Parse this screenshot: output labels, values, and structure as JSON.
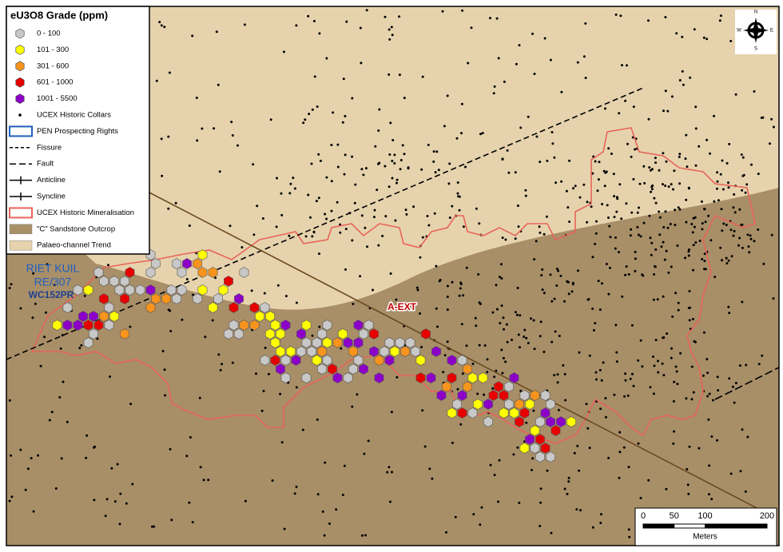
{
  "legend": {
    "title": "eU3O8 Grade (ppm)",
    "items": [
      {
        "label": "0 - 100",
        "symbol": "hex",
        "color": "#c8c8c8"
      },
      {
        "label": "101 - 300",
        "symbol": "hex",
        "color": "#ffff00"
      },
      {
        "label": "301 - 600",
        "symbol": "hex",
        "color": "#f7941d"
      },
      {
        "label": "601 - 1000",
        "symbol": "hex",
        "color": "#e60000"
      },
      {
        "label": "1001 - 5500",
        "symbol": "hex",
        "color": "#8c00c8"
      },
      {
        "label": "UCEX Historic Collars",
        "symbol": "dot",
        "color": "#000000"
      },
      {
        "label": "PEN Prospecting Rights",
        "symbol": "box",
        "color": "#1f5fbf"
      },
      {
        "label": "Fissure",
        "symbol": "dash",
        "color": "#000000"
      },
      {
        "label": "Fault",
        "symbol": "longdash",
        "color": "#000000"
      },
      {
        "label": "Anticline",
        "symbol": "anticline",
        "color": "#000000"
      },
      {
        "label": "Syncline",
        "symbol": "syncline",
        "color": "#000000"
      },
      {
        "label": "UCEX Historic Mineralisation",
        "symbol": "box",
        "color": "#e8645a"
      },
      {
        "label": "\"C\" Sandstone Outcrop",
        "symbol": "fill",
        "color": "#a88f68"
      },
      {
        "label": "Palaeo-channel Trend",
        "symbol": "fill",
        "color": "#e6d3ad"
      }
    ]
  },
  "labels": {
    "farm": "RIET KUIL",
    "portion": "RE/307",
    "right": "WC152PR",
    "target": "A-EXT"
  },
  "compass": {
    "n": "N",
    "e": "E",
    "s": "S",
    "w": "W"
  },
  "scale_bar": {
    "ticks": [
      0,
      50,
      100,
      200
    ],
    "unit": "Meters"
  }
}
